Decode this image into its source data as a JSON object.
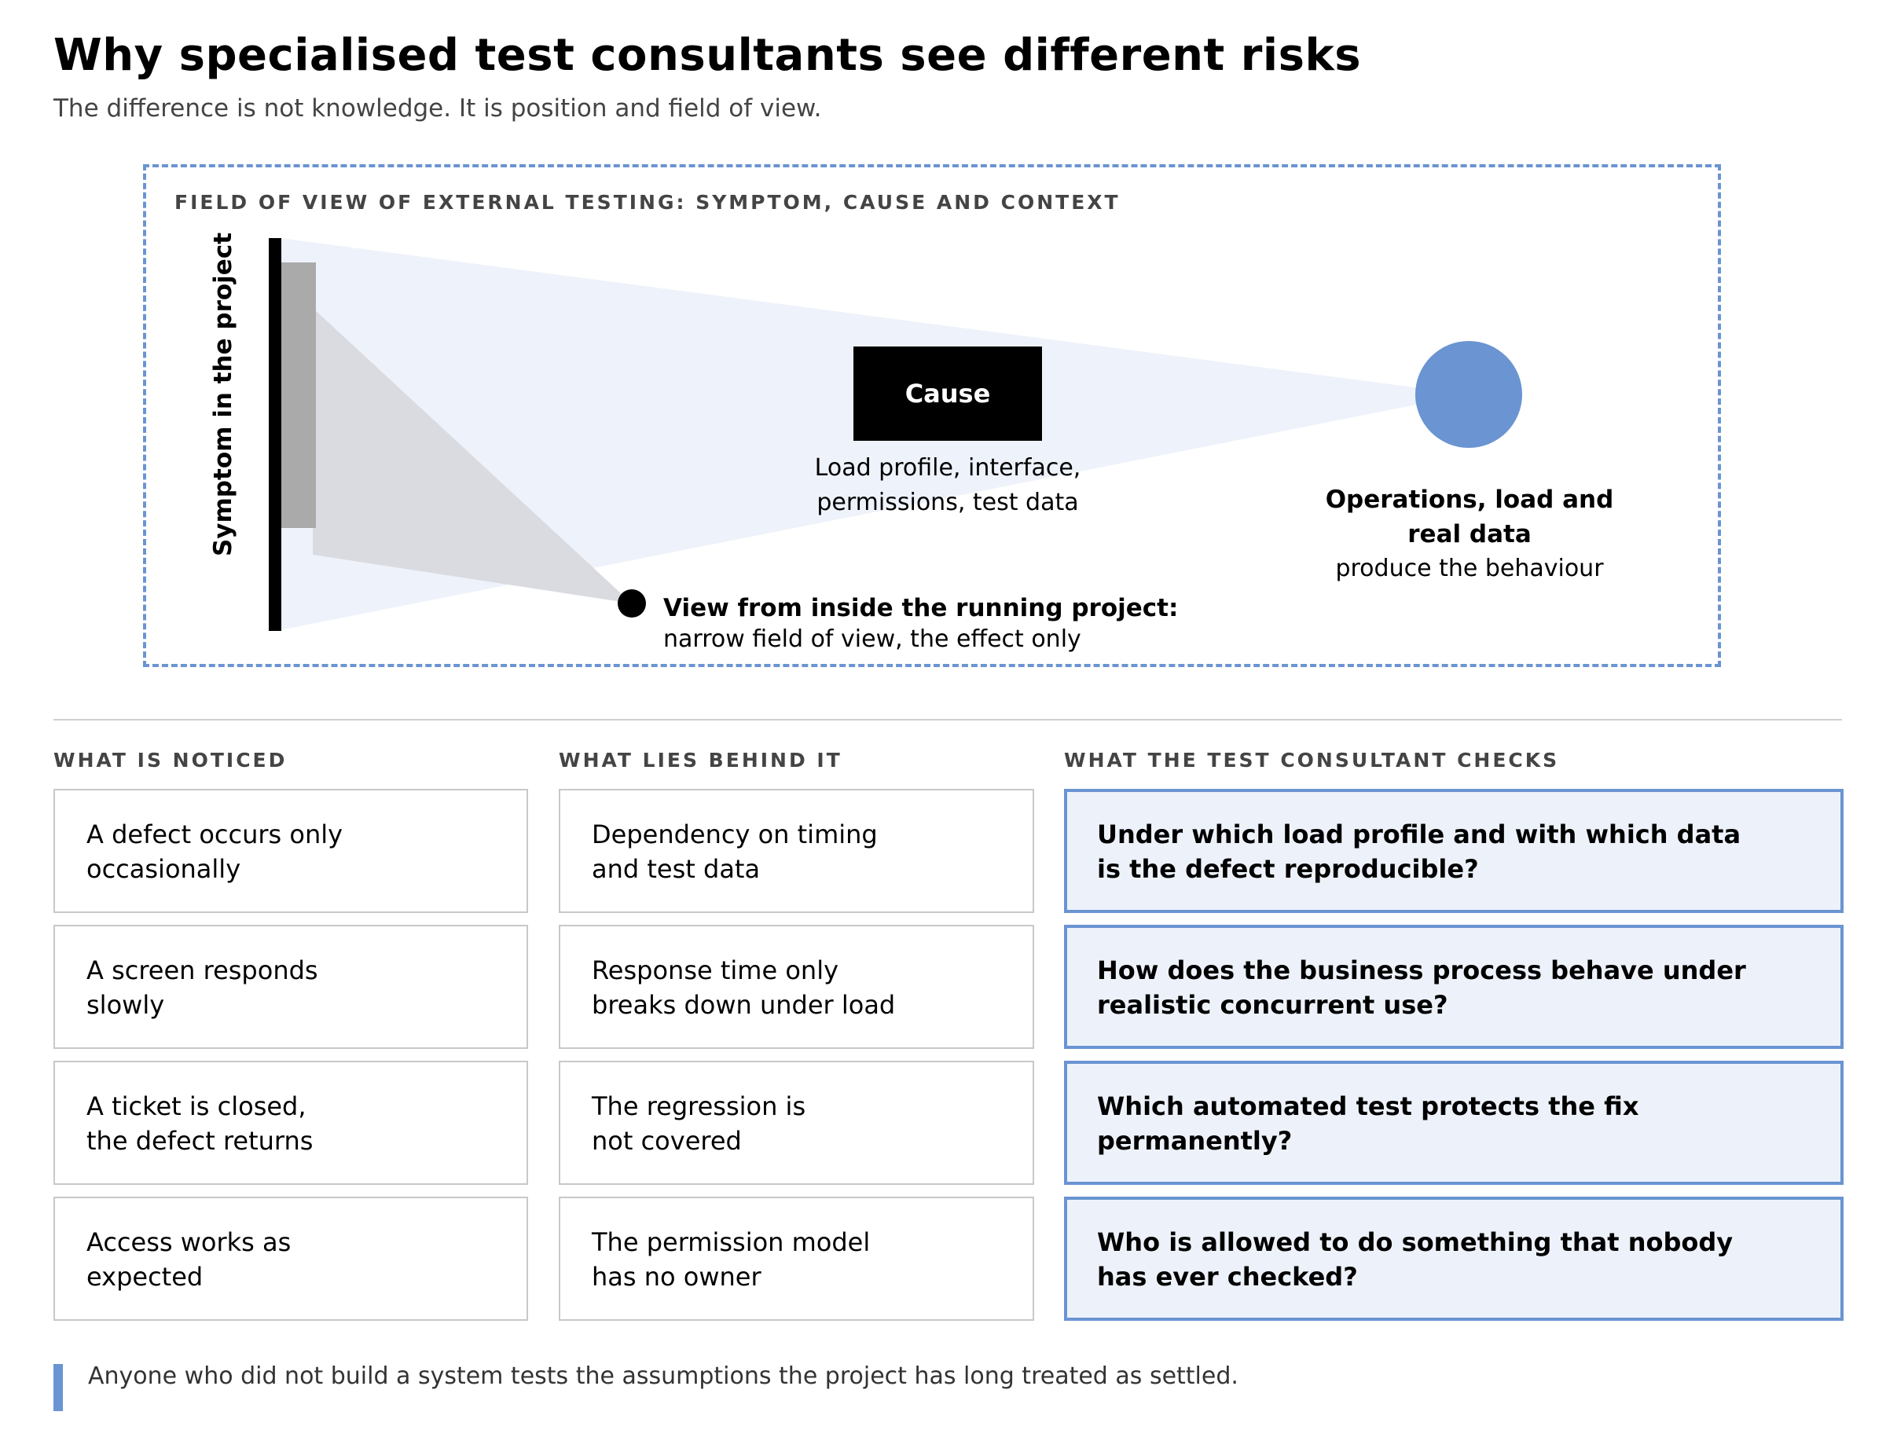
{
  "header": {
    "title": "Why specialised test consultants see different risks",
    "subtitle": "The difference is not knowledge. It is position and field of view."
  },
  "figure": {
    "label": "FIELD OF VIEW OF EXTERNAL TESTING: SYMPTOM, CAUSE AND CONTEXT",
    "symptom_label": "Symptom in the project",
    "cause_label": "Cause",
    "cause_desc_line1": "Load profile, interface,",
    "cause_desc_line2": "permissions, test data",
    "ops_title_line1": "Operations, load and",
    "ops_title_line2": "real data",
    "ops_desc": "produce the behaviour",
    "view_title": "View from inside the running project:",
    "view_desc": "narrow field of view, the effect only",
    "colors": {
      "accent_blue": "#6a94d2",
      "wide_cone": "#eef2fa",
      "narrow_cone": "#d8d9de",
      "symptom_bar": "#000000",
      "inner_panel": "#aaaaaa"
    }
  },
  "columns": {
    "noticed": {
      "heading": "WHAT IS NOTICED",
      "items": [
        {
          "line1": "A defect occurs only",
          "line2": "occasionally"
        },
        {
          "line1": "A screen responds",
          "line2": "slowly"
        },
        {
          "line1": "A ticket is closed,",
          "line2": "the defect returns"
        },
        {
          "line1": "Access works as",
          "line2": "expected"
        }
      ]
    },
    "behind": {
      "heading": "WHAT LIES BEHIND IT",
      "items": [
        {
          "line1": "Dependency on timing",
          "line2": "and test data"
        },
        {
          "line1": "Response time only",
          "line2": "breaks down under load"
        },
        {
          "line1": "The regression is",
          "line2": "not covered"
        },
        {
          "line1": "The permission model",
          "line2": "has no owner"
        }
      ]
    },
    "checks": {
      "heading": "WHAT THE TEST CONSULTANT CHECKS",
      "items": [
        {
          "line1": "Under which load profile and with which data",
          "line2": "is the defect reproducible?"
        },
        {
          "line1": "How does the business process behave under",
          "line2": "realistic concurrent use?"
        },
        {
          "line1": "Which automated test protects the fix",
          "line2": "permanently?"
        },
        {
          "line1": "Who is allowed to do something that nobody",
          "line2": "has ever checked?"
        }
      ]
    }
  },
  "footer": {
    "note": "Anyone who did not build a system tests the assumptions the project has long treated as settled."
  }
}
